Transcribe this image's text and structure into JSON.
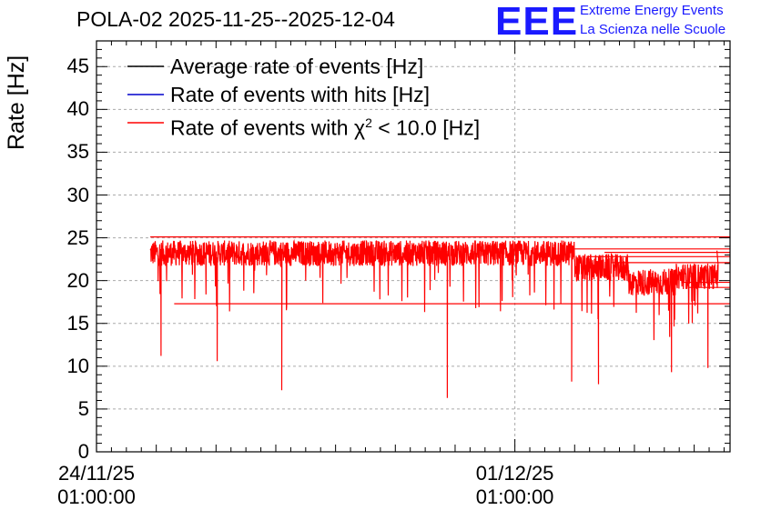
{
  "chart_data": {
    "type": "line",
    "title": "POLA-02 2025-11-25--2025-12-04",
    "xlabel": "",
    "ylabel": "Rate [Hz]",
    "ylim": [
      0,
      48
    ],
    "yticks": [
      "0",
      "5",
      "10",
      "15",
      "20",
      "25",
      "30",
      "35",
      "40",
      "45"
    ],
    "xlim_days": [
      0,
      10.6
    ],
    "xticks": [
      {
        "day": 0,
        "date": "24/11/25",
        "time": "01:00:00"
      },
      {
        "day": 7,
        "date": "01/12/25",
        "time": "01:00:00"
      }
    ],
    "grid": true,
    "legend_position": "top-left",
    "series": [
      {
        "name": "Average rate of events [Hz]",
        "color": "#000000",
        "visible_in_plot": false
      },
      {
        "name": "Rate of events with hits [Hz]",
        "color": "#0000cc",
        "visible_in_plot": false
      },
      {
        "name": "Rate of events with χ² < 10.0 [Hz]",
        "color": "#ff0000",
        "segments": [
          {
            "start_day": 0.9,
            "end_day": 8.0,
            "mean": 23.2,
            "spread": 1.5
          },
          {
            "start_day": 8.0,
            "end_day": 8.9,
            "mean": 21.5,
            "spread": 1.6
          },
          {
            "start_day": 8.9,
            "end_day": 9.7,
            "mean": 19.8,
            "spread": 1.6
          },
          {
            "start_day": 9.7,
            "end_day": 10.4,
            "mean": 20.5,
            "spread": 1.5
          }
        ],
        "dips": [
          {
            "day": 1.08,
            "value": 11.2
          },
          {
            "day": 2.02,
            "value": 10.6
          },
          {
            "day": 3.1,
            "value": 7.2
          },
          {
            "day": 5.87,
            "value": 6.3
          },
          {
            "day": 7.95,
            "value": 8.2
          },
          {
            "day": 8.4,
            "value": 7.9
          },
          {
            "day": 9.62,
            "value": 9.3
          },
          {
            "day": 10.23,
            "value": 9.8
          }
        ],
        "flat_lines": [
          25.1,
          23.7,
          23.3,
          22.8,
          22.1,
          19.8,
          19.2,
          17.3
        ]
      }
    ]
  },
  "logo": {
    "mark": "EEE",
    "line1": "Extreme Energy Events",
    "line2": "La Scienza nelle Scuole",
    "color": "#1a1aff"
  },
  "legend": {
    "entry1": "Average rate of events [Hz]",
    "entry2": "Rate of events with hits [Hz]",
    "entry3_prefix": "Rate of events with ",
    "entry3_symbol": "χ",
    "entry3_sup": "2",
    "entry3_suffix": " < 10.0 [Hz]"
  }
}
